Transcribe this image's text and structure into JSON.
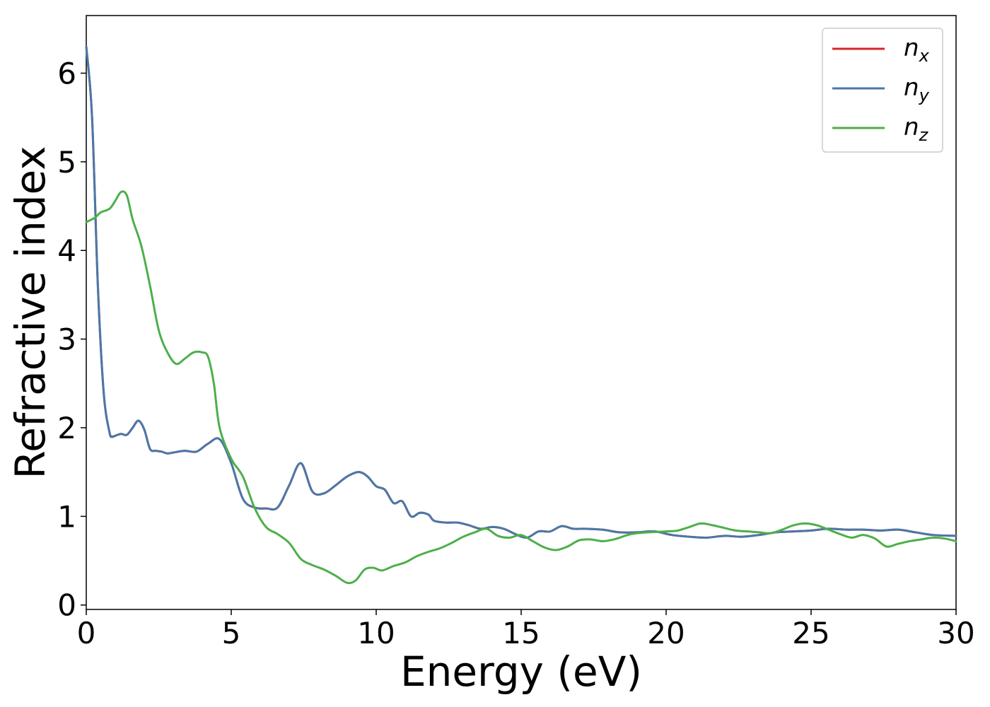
{
  "chart_data": {
    "type": "line",
    "title": "",
    "xlabel": "Energy (eV)",
    "ylabel": "Refractive index",
    "xlim": [
      0,
      30
    ],
    "ylim": [
      -0.05,
      6.65
    ],
    "xticks": [
      0,
      5,
      10,
      15,
      20,
      25,
      30
    ],
    "yticks": [
      0,
      1,
      2,
      3,
      4,
      5,
      6
    ],
    "grid": false,
    "legend_position": "top-right",
    "series": [
      {
        "name": "n",
        "sub": "x",
        "color": "#d62728",
        "x": [
          0,
          0.2,
          0.4,
          0.6,
          0.8,
          0.9,
          1.0,
          1.2,
          1.4,
          1.6,
          1.8,
          2.0,
          2.2,
          2.4,
          2.6,
          2.8,
          3.0,
          3.4,
          3.8,
          4.2,
          4.6,
          5.0,
          5.4,
          5.8,
          6.2,
          6.6,
          7.0,
          7.4,
          7.8,
          8.2,
          8.6,
          9.0,
          9.4,
          9.7,
          10.0,
          10.3,
          10.6,
          10.9,
          11.2,
          11.5,
          11.8,
          12.0,
          12.4,
          12.8,
          13.2,
          13.6,
          14.0,
          14.4,
          14.8,
          15.2,
          15.6,
          16.0,
          16.4,
          16.8,
          17.2,
          17.8,
          18.4,
          19.0,
          19.6,
          20.2,
          20.8,
          21.4,
          22.0,
          22.6,
          23.2,
          23.8,
          24.4,
          25.0,
          25.6,
          26.2,
          26.8,
          27.4,
          28.0,
          28.6,
          29.2,
          30.0
        ],
        "values": [
          6.3,
          5.5,
          3.6,
          2.4,
          1.95,
          1.9,
          1.91,
          1.93,
          1.92,
          2.0,
          2.08,
          1.98,
          1.76,
          1.74,
          1.73,
          1.71,
          1.72,
          1.74,
          1.73,
          1.82,
          1.87,
          1.6,
          1.2,
          1.1,
          1.09,
          1.1,
          1.35,
          1.6,
          1.28,
          1.26,
          1.35,
          1.45,
          1.5,
          1.45,
          1.34,
          1.3,
          1.15,
          1.17,
          1.0,
          1.04,
          1.02,
          0.95,
          0.93,
          0.93,
          0.9,
          0.86,
          0.88,
          0.86,
          0.8,
          0.76,
          0.83,
          0.83,
          0.89,
          0.86,
          0.86,
          0.85,
          0.82,
          0.82,
          0.83,
          0.79,
          0.77,
          0.76,
          0.78,
          0.77,
          0.79,
          0.82,
          0.83,
          0.84,
          0.86,
          0.85,
          0.85,
          0.84,
          0.85,
          0.82,
          0.79,
          0.78
        ]
      },
      {
        "name": "n",
        "sub": "y",
        "color": "#4a78a8",
        "x": [
          0,
          0.2,
          0.4,
          0.6,
          0.8,
          0.9,
          1.0,
          1.2,
          1.4,
          1.6,
          1.8,
          2.0,
          2.2,
          2.4,
          2.6,
          2.8,
          3.0,
          3.4,
          3.8,
          4.2,
          4.6,
          5.0,
          5.4,
          5.8,
          6.2,
          6.6,
          7.0,
          7.4,
          7.8,
          8.2,
          8.6,
          9.0,
          9.4,
          9.7,
          10.0,
          10.3,
          10.6,
          10.9,
          11.2,
          11.5,
          11.8,
          12.0,
          12.4,
          12.8,
          13.2,
          13.6,
          14.0,
          14.4,
          14.8,
          15.2,
          15.6,
          16.0,
          16.4,
          16.8,
          17.2,
          17.8,
          18.4,
          19.0,
          19.6,
          20.2,
          20.8,
          21.4,
          22.0,
          22.6,
          23.2,
          23.8,
          24.4,
          25.0,
          25.6,
          26.2,
          26.8,
          27.4,
          28.0,
          28.6,
          29.2,
          30.0
        ],
        "values": [
          6.3,
          5.5,
          3.6,
          2.4,
          1.95,
          1.9,
          1.91,
          1.93,
          1.92,
          2.0,
          2.08,
          1.98,
          1.76,
          1.74,
          1.73,
          1.71,
          1.72,
          1.74,
          1.73,
          1.82,
          1.87,
          1.6,
          1.2,
          1.1,
          1.09,
          1.1,
          1.35,
          1.6,
          1.28,
          1.26,
          1.35,
          1.45,
          1.5,
          1.45,
          1.34,
          1.3,
          1.15,
          1.17,
          1.0,
          1.04,
          1.02,
          0.95,
          0.93,
          0.93,
          0.9,
          0.86,
          0.88,
          0.86,
          0.8,
          0.76,
          0.83,
          0.83,
          0.89,
          0.86,
          0.86,
          0.85,
          0.82,
          0.82,
          0.83,
          0.79,
          0.77,
          0.76,
          0.78,
          0.77,
          0.79,
          0.82,
          0.83,
          0.84,
          0.86,
          0.85,
          0.85,
          0.84,
          0.85,
          0.82,
          0.79,
          0.78
        ]
      },
      {
        "name": "n",
        "sub": "z",
        "color": "#4daf4a",
        "x": [
          0,
          0.3,
          0.5,
          0.8,
          1.0,
          1.2,
          1.4,
          1.6,
          1.9,
          2.2,
          2.5,
          2.8,
          3.1,
          3.4,
          3.7,
          4.0,
          4.2,
          4.4,
          4.6,
          5.0,
          5.4,
          5.8,
          6.2,
          6.6,
          7.0,
          7.4,
          7.8,
          8.2,
          8.6,
          9.0,
          9.3,
          9.6,
          9.9,
          10.2,
          10.6,
          11.0,
          11.4,
          11.8,
          12.2,
          12.6,
          13.0,
          13.4,
          13.8,
          14.2,
          14.6,
          15.0,
          15.4,
          15.8,
          16.2,
          16.6,
          17.0,
          17.4,
          17.8,
          18.2,
          18.8,
          19.4,
          20.0,
          20.4,
          20.8,
          21.2,
          21.6,
          22.0,
          22.4,
          22.8,
          23.2,
          23.6,
          24.0,
          24.4,
          24.8,
          25.2,
          25.6,
          26.0,
          26.4,
          26.8,
          27.2,
          27.6,
          28.0,
          28.4,
          28.8,
          29.2,
          29.6,
          30.0
        ],
        "values": [
          4.32,
          4.37,
          4.43,
          4.47,
          4.56,
          4.66,
          4.62,
          4.35,
          4.05,
          3.6,
          3.1,
          2.85,
          2.72,
          2.78,
          2.85,
          2.85,
          2.8,
          2.5,
          2.0,
          1.65,
          1.45,
          1.1,
          0.88,
          0.8,
          0.7,
          0.52,
          0.45,
          0.4,
          0.33,
          0.25,
          0.28,
          0.4,
          0.42,
          0.39,
          0.44,
          0.48,
          0.55,
          0.6,
          0.64,
          0.7,
          0.77,
          0.82,
          0.86,
          0.78,
          0.76,
          0.79,
          0.72,
          0.65,
          0.62,
          0.66,
          0.73,
          0.74,
          0.72,
          0.74,
          0.8,
          0.82,
          0.83,
          0.84,
          0.88,
          0.92,
          0.9,
          0.87,
          0.84,
          0.83,
          0.82,
          0.81,
          0.85,
          0.9,
          0.92,
          0.9,
          0.85,
          0.8,
          0.76,
          0.79,
          0.75,
          0.66,
          0.69,
          0.72,
          0.74,
          0.76,
          0.75,
          0.72
        ]
      }
    ]
  }
}
